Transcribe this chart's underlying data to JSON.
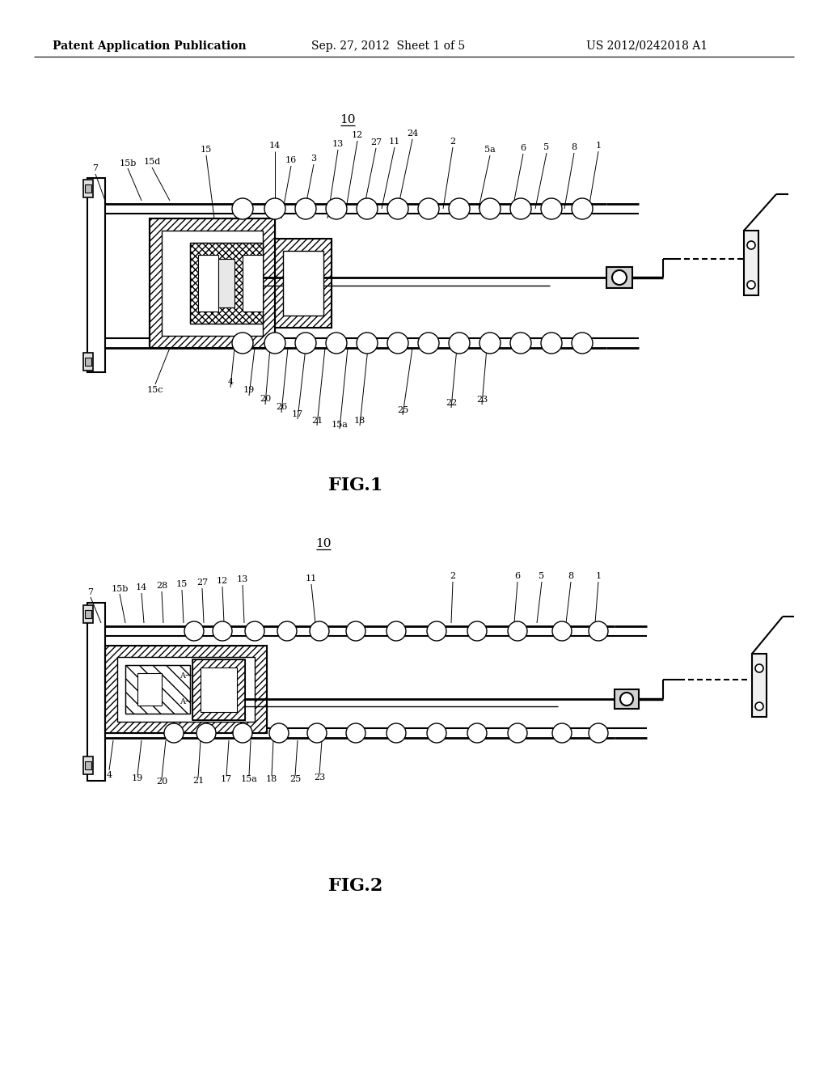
{
  "background_color": "#ffffff",
  "header_left": "Patent Application Publication",
  "header_center": "Sep. 27, 2012  Sheet 1 of 5",
  "header_right": "US 2012/0242018 A1",
  "fig1_label": "FIG.1",
  "fig2_label": "FIG.2",
  "fig1_ref": "10",
  "fig2_ref": "10"
}
